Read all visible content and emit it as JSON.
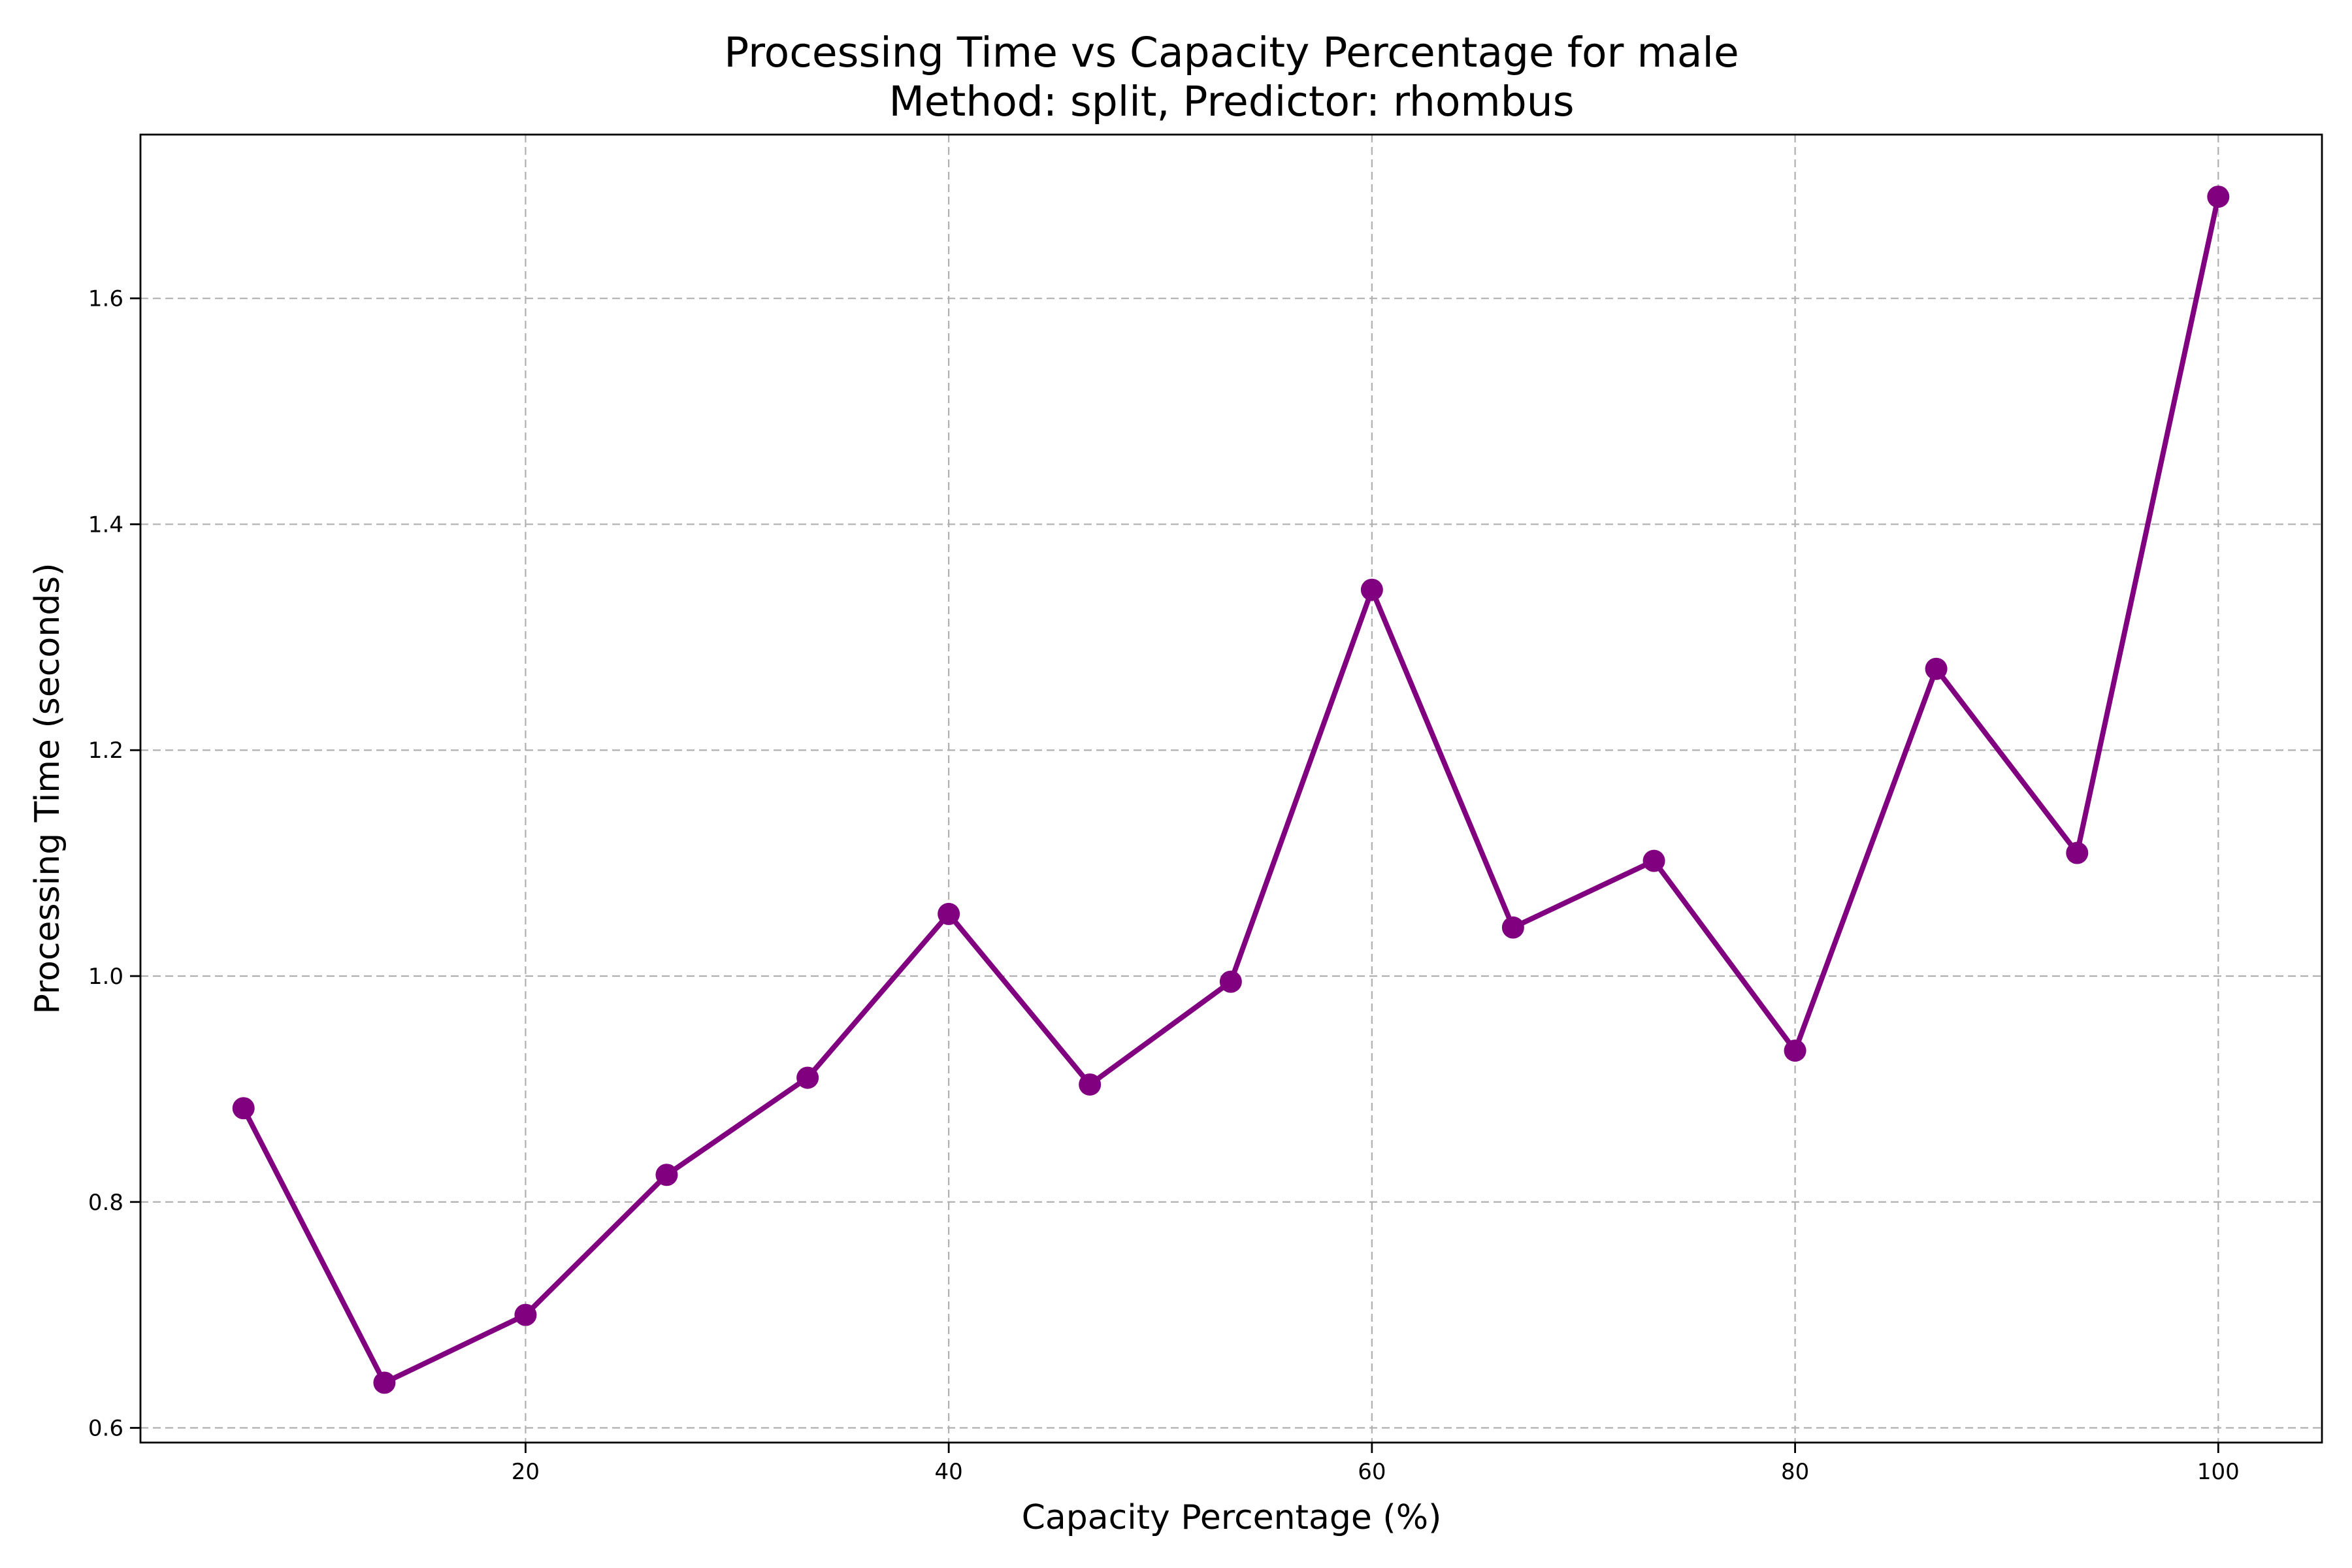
{
  "chart_data": {
    "type": "line",
    "title": "Processing Time vs Capacity Percentage for male",
    "subtitle": "Method: split, Predictor: rhombus",
    "xlabel": "Capacity Percentage (%)",
    "ylabel": "Processing Time (seconds)",
    "xlim": [
      1.8,
      104.9
    ],
    "ylim": [
      0.587,
      1.745
    ],
    "xticks": [
      20,
      40,
      60,
      80,
      100
    ],
    "xtick_labels": [
      "20",
      "40",
      "60",
      "80",
      "100"
    ],
    "yticks": [
      0.6,
      0.8,
      1.0,
      1.2,
      1.4,
      1.6
    ],
    "ytick_labels": [
      "0.6",
      "0.8",
      "1.0",
      "1.2",
      "1.4",
      "1.6"
    ],
    "grid": true,
    "series": [
      {
        "color": "#800080",
        "marker": "circle",
        "x": [
          6.67,
          13.33,
          20.0,
          26.67,
          33.33,
          40.0,
          46.67,
          53.33,
          60.0,
          66.67,
          73.33,
          80.0,
          86.67,
          93.33,
          100.0
        ],
        "y": [
          0.883,
          0.64,
          0.7,
          0.824,
          0.91,
          1.055,
          0.904,
          0.995,
          1.342,
          1.043,
          1.102,
          0.934,
          1.272,
          1.109,
          1.69
        ]
      }
    ]
  }
}
